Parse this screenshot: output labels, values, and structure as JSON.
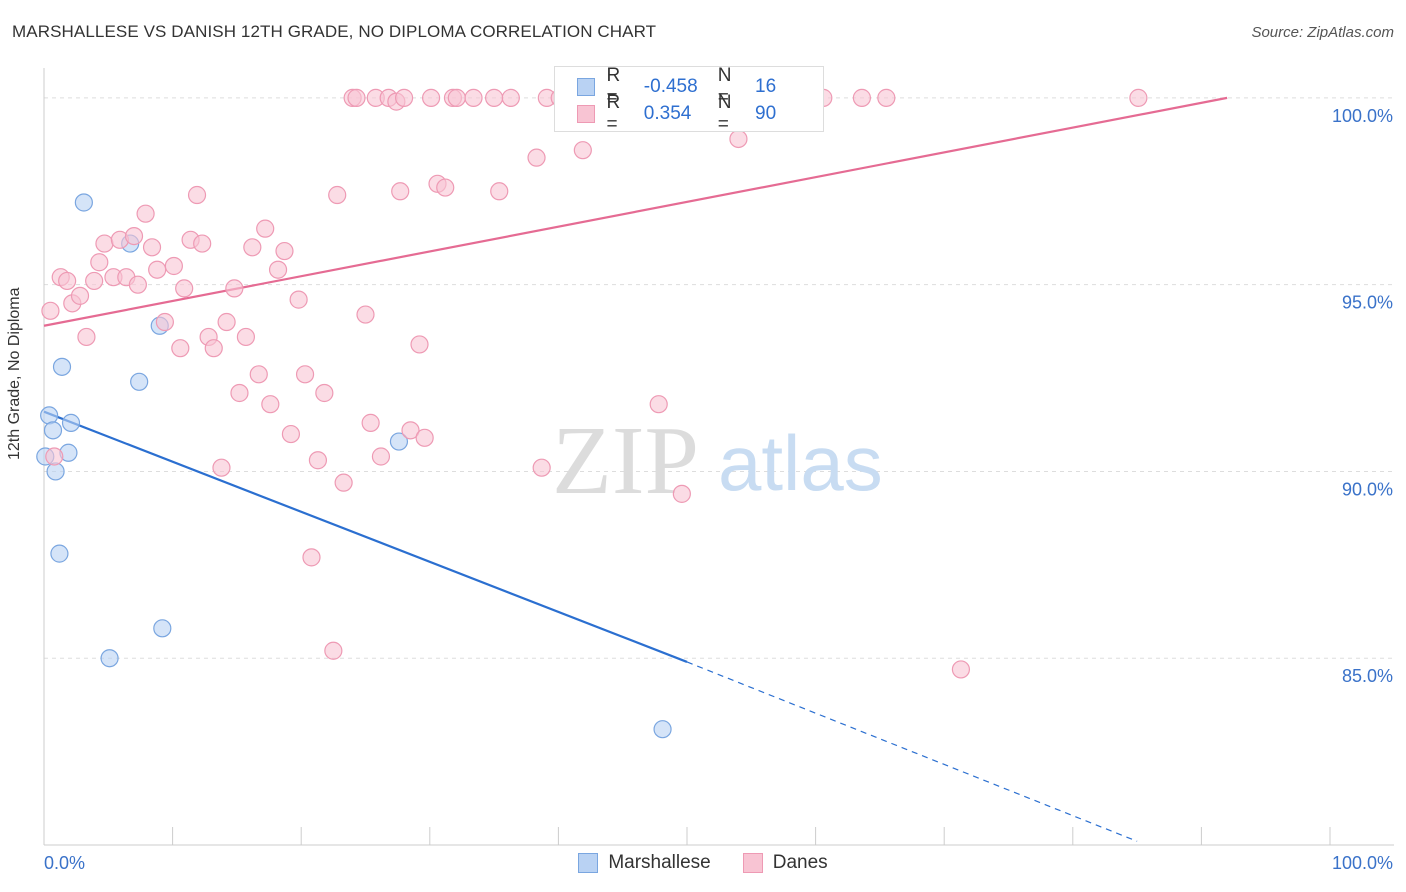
{
  "header": {
    "title": "MARSHALLESE VS DANISH 12TH GRADE, NO DIPLOMA CORRELATION CHART",
    "source": "Source: ZipAtlas.com"
  },
  "watermark": {
    "zip": "ZIP",
    "atlas": "atlas"
  },
  "legend": {
    "rows": [
      {
        "r_label": "R =",
        "r_value": "-0.458",
        "n_label": "N =",
        "n_value": "16"
      },
      {
        "r_label": "R =",
        "r_value": "0.354",
        "n_label": "N =",
        "n_value": "90"
      }
    ]
  },
  "colors": {
    "blue_fill": "#b9d2f3",
    "blue_stroke": "#7aa6e0",
    "blue_line": "#2b6fd0",
    "pink_fill": "#f8c4d3",
    "pink_stroke": "#ee9ab4",
    "pink_line": "#e56b93",
    "tick_label": "#3a72c9",
    "grid": "#dddddd"
  },
  "chart_data": {
    "type": "scatter",
    "title": "MARSHALLESE VS DANISH 12TH GRADE, NO DIPLOMA CORRELATION CHART",
    "xlabel": "",
    "ylabel": "12th Grade, No Diploma",
    "xlim": [
      0,
      100
    ],
    "ylim": [
      80,
      100.8
    ],
    "x_tick_labels": [
      "0.0%",
      "100.0%"
    ],
    "y_ticks": [
      85,
      90,
      95,
      100
    ],
    "y_tick_labels": [
      "85.0%",
      "90.0%",
      "95.0%",
      "100.0%"
    ],
    "series": [
      {
        "name": "Marshallese",
        "color": "blue",
        "points": [
          [
            0.1,
            90.4
          ],
          [
            0.4,
            91.5
          ],
          [
            0.7,
            91.1
          ],
          [
            0.9,
            90.0
          ],
          [
            1.2,
            87.8
          ],
          [
            1.4,
            92.8
          ],
          [
            2.1,
            91.3
          ],
          [
            1.9,
            90.5
          ],
          [
            3.1,
            97.2
          ],
          [
            5.1,
            85.0
          ],
          [
            6.7,
            96.1
          ],
          [
            9.0,
            93.9
          ],
          [
            7.4,
            92.4
          ],
          [
            9.2,
            85.8
          ],
          [
            27.6,
            90.8
          ],
          [
            48.1,
            83.1
          ]
        ],
        "trend": {
          "x0": 0,
          "y0": 91.6,
          "x1": 50,
          "y1": 84.9,
          "dash_to_x": 85,
          "dash_to_y": 80.1
        }
      },
      {
        "name": "Danes",
        "color": "pink",
        "points": [
          [
            0.5,
            94.3
          ],
          [
            0.8,
            90.4
          ],
          [
            1.3,
            95.2
          ],
          [
            1.8,
            95.1
          ],
          [
            2.2,
            94.5
          ],
          [
            2.8,
            94.7
          ],
          [
            3.3,
            93.6
          ],
          [
            3.9,
            95.1
          ],
          [
            4.3,
            95.6
          ],
          [
            4.7,
            96.1
          ],
          [
            5.4,
            95.2
          ],
          [
            5.9,
            96.2
          ],
          [
            6.4,
            95.2
          ],
          [
            7.0,
            96.3
          ],
          [
            7.3,
            95.0
          ],
          [
            7.9,
            96.9
          ],
          [
            8.4,
            96.0
          ],
          [
            8.8,
            95.4
          ],
          [
            9.4,
            94.0
          ],
          [
            10.1,
            95.5
          ],
          [
            10.6,
            93.3
          ],
          [
            10.9,
            94.9
          ],
          [
            11.4,
            96.2
          ],
          [
            11.9,
            97.4
          ],
          [
            12.3,
            96.1
          ],
          [
            12.8,
            93.6
          ],
          [
            13.2,
            93.3
          ],
          [
            13.8,
            90.1
          ],
          [
            14.2,
            94.0
          ],
          [
            14.8,
            94.9
          ],
          [
            15.2,
            92.1
          ],
          [
            15.7,
            93.6
          ],
          [
            16.2,
            96.0
          ],
          [
            16.7,
            92.6
          ],
          [
            17.2,
            96.5
          ],
          [
            17.6,
            91.8
          ],
          [
            18.2,
            95.4
          ],
          [
            18.7,
            95.9
          ],
          [
            19.2,
            91.0
          ],
          [
            19.8,
            94.6
          ],
          [
            20.3,
            92.6
          ],
          [
            20.8,
            87.7
          ],
          [
            21.3,
            90.3
          ],
          [
            21.8,
            92.1
          ],
          [
            22.5,
            85.2
          ],
          [
            22.8,
            97.4
          ],
          [
            23.3,
            89.7
          ],
          [
            24.0,
            100.0
          ],
          [
            24.3,
            100.0
          ],
          [
            25.0,
            94.2
          ],
          [
            25.4,
            91.3
          ],
          [
            25.8,
            100.0
          ],
          [
            26.2,
            90.4
          ],
          [
            26.8,
            100.0
          ],
          [
            27.4,
            99.9
          ],
          [
            27.7,
            97.5
          ],
          [
            28.0,
            100.0
          ],
          [
            28.5,
            91.1
          ],
          [
            29.2,
            93.4
          ],
          [
            29.6,
            90.9
          ],
          [
            30.1,
            100.0
          ],
          [
            30.6,
            97.7
          ],
          [
            31.2,
            97.6
          ],
          [
            31.8,
            100.0
          ],
          [
            32.1,
            100.0
          ],
          [
            33.4,
            100.0
          ],
          [
            35.0,
            100.0
          ],
          [
            35.4,
            97.5
          ],
          [
            36.3,
            100.0
          ],
          [
            38.3,
            98.4
          ],
          [
            38.7,
            90.1
          ],
          [
            39.1,
            100.0
          ],
          [
            40.1,
            100.0
          ],
          [
            40.4,
            100.0
          ],
          [
            41.1,
            100.0
          ],
          [
            41.7,
            100.0
          ],
          [
            41.9,
            98.6
          ],
          [
            42.6,
            100.0
          ],
          [
            43.9,
            100.0
          ],
          [
            45.0,
            100.0
          ],
          [
            45.4,
            100.0
          ],
          [
            47.8,
            91.8
          ],
          [
            49.6,
            89.4
          ],
          [
            54.0,
            98.9
          ],
          [
            58.0,
            100.0
          ],
          [
            60.6,
            100.0
          ],
          [
            63.6,
            100.0
          ],
          [
            65.5,
            100.0
          ],
          [
            71.3,
            84.7
          ],
          [
            85.1,
            100.0
          ]
        ],
        "trend": {
          "x0": 0,
          "y0": 93.9,
          "x1": 92,
          "y1": 100.0
        }
      }
    ]
  },
  "bottom_legend": [
    {
      "label": "Marshallese"
    },
    {
      "label": "Danes"
    }
  ]
}
